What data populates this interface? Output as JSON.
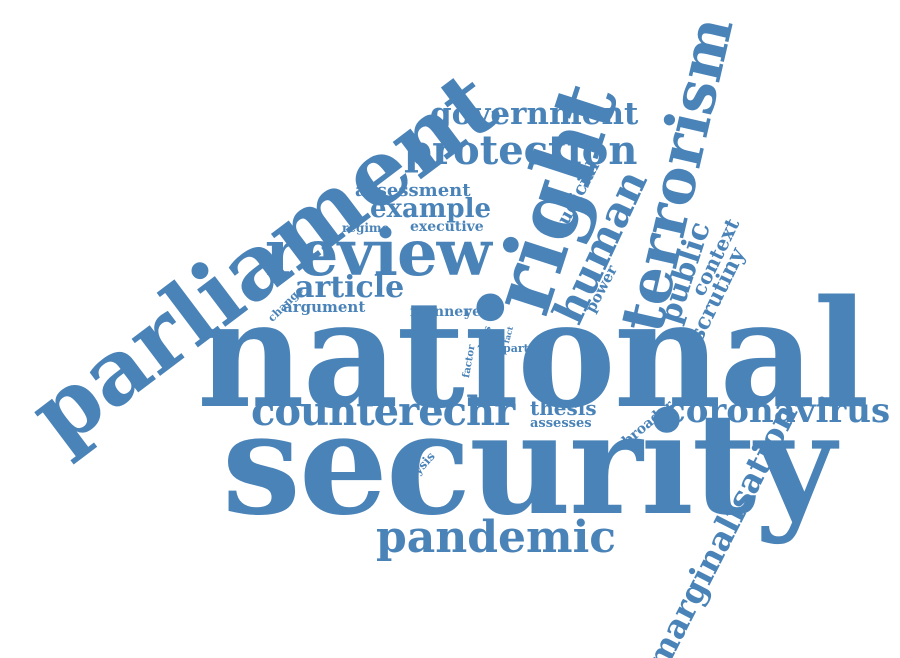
{
  "word_cloud": {
    "color": "#4a83b8",
    "words": [
      {
        "id": "parliament",
        "text": "parliament"
      },
      {
        "id": "national",
        "text": "national"
      },
      {
        "id": "security",
        "text": "security"
      },
      {
        "id": "review",
        "text": "review"
      },
      {
        "id": "right",
        "text": "right"
      },
      {
        "id": "terrorism",
        "text": "terrorism"
      },
      {
        "id": "human",
        "text": "human"
      },
      {
        "id": "protection",
        "text": "protection"
      },
      {
        "id": "government",
        "text": "government"
      },
      {
        "id": "counterechr",
        "text": "counterechr"
      },
      {
        "id": "coronavirus",
        "text": "coronavirus"
      },
      {
        "id": "pandemic",
        "text": "pandemic"
      },
      {
        "id": "marginalisation",
        "text": "marginalisation"
      },
      {
        "id": "public",
        "text": "public"
      },
      {
        "id": "scrutiny",
        "text": "scrutiny"
      },
      {
        "id": "context",
        "text": "context"
      },
      {
        "id": "example",
        "text": "example"
      },
      {
        "id": "assessment",
        "text": "assessment"
      },
      {
        "id": "article",
        "text": "article"
      },
      {
        "id": "argument",
        "text": "argument"
      },
      {
        "id": "executive",
        "text": "executive"
      },
      {
        "id": "regime",
        "text": "regime"
      },
      {
        "id": "judicial",
        "text": "judicial"
      },
      {
        "id": "power",
        "text": "power"
      },
      {
        "id": "change",
        "text": "change"
      },
      {
        "id": "manner",
        "text": "manner"
      },
      {
        "id": "year",
        "text": "year"
      },
      {
        "id": "enable",
        "text": "enable"
      },
      {
        "id": "factor",
        "text": "factor"
      },
      {
        "id": "lghs",
        "text": "lghs"
      },
      {
        "id": "fact",
        "text": "fact"
      },
      {
        "id": "part",
        "text": "part"
      },
      {
        "id": "thesis",
        "text": "thesis"
      },
      {
        "id": "assesses",
        "text": "assesses"
      },
      {
        "id": "broader",
        "text": "broader"
      },
      {
        "id": "analysis",
        "text": "analysis"
      }
    ]
  }
}
